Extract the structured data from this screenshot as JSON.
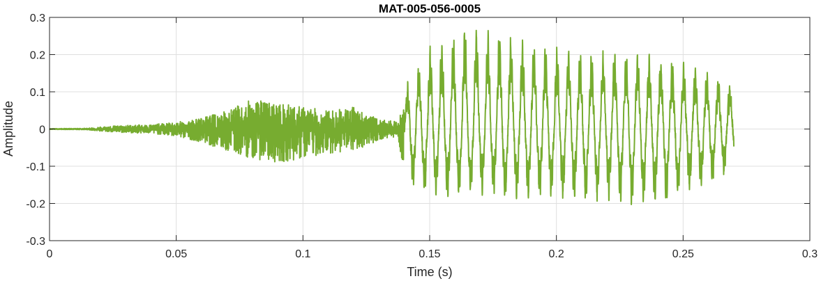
{
  "chart_data": {
    "type": "line",
    "title": "MAT-005-056-0005",
    "xlabel": "Time (s)",
    "ylabel": "Amplitude",
    "xlim": [
      0,
      0.3
    ],
    "ylim": [
      -0.3,
      0.3
    ],
    "xticks": [
      0,
      0.05,
      0.1,
      0.15,
      0.2,
      0.25,
      0.3
    ],
    "xtick_labels": [
      "0",
      "0.05",
      "0.1",
      "0.15",
      "0.2",
      "0.25",
      "0.3"
    ],
    "yticks": [
      0.3,
      0.2,
      0.1,
      0,
      -0.1,
      -0.2,
      -0.3
    ],
    "ytick_labels": [
      "0.3",
      "0.2",
      "0.1",
      "0",
      "-0.1",
      "-0.2",
      "-0.3"
    ],
    "grid": true,
    "line_color": "#77ac30",
    "series": [
      {
        "x": [
          0,
          0.015,
          0.02,
          0.03,
          0.04,
          0.05,
          0.06,
          0.07,
          0.08,
          0.09,
          0.1,
          0.11,
          0.12,
          0.13,
          0.137,
          0.14,
          0.142,
          0.145,
          0.15,
          0.16,
          0.165,
          0.17,
          0.18,
          0.19,
          0.2,
          0.21,
          0.22,
          0.23,
          0.24,
          0.25,
          0.26,
          0.265,
          0.27
        ],
        "y_max": [
          0.001,
          0.002,
          0.006,
          0.01,
          0.012,
          0.018,
          0.03,
          0.05,
          0.08,
          0.07,
          0.06,
          0.05,
          0.06,
          0.025,
          0.02,
          0.06,
          0.15,
          0.16,
          0.21,
          0.24,
          0.28,
          0.26,
          0.25,
          0.22,
          0.21,
          0.2,
          0.2,
          0.21,
          0.18,
          0.17,
          0.15,
          0.12,
          0.11
        ],
        "y_min": [
          -0.001,
          -0.002,
          -0.006,
          -0.01,
          -0.012,
          -0.02,
          -0.035,
          -0.06,
          -0.08,
          -0.09,
          -0.08,
          -0.065,
          -0.06,
          -0.03,
          -0.02,
          -0.11,
          -0.15,
          -0.16,
          -0.17,
          -0.18,
          -0.17,
          -0.17,
          -0.18,
          -0.18,
          -0.18,
          -0.19,
          -0.18,
          -0.2,
          -0.2,
          -0.17,
          -0.15,
          -0.12,
          -0.1
        ]
      }
    ]
  }
}
